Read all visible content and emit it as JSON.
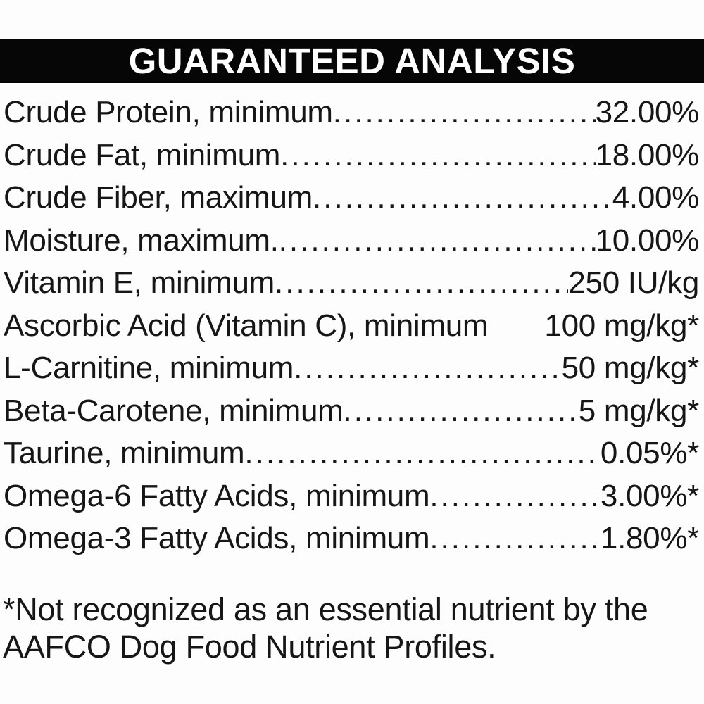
{
  "header": {
    "title": "GUARANTEED ANALYSIS"
  },
  "table": {
    "rows": [
      {
        "label": "Crude Protein, minimum",
        "value": "32.00%",
        "dots": true
      },
      {
        "label": "Crude Fat, minimum",
        "value": "18.00%",
        "dots": true
      },
      {
        "label": "Crude Fiber, maximum",
        "value": "4.00%",
        "dots": true
      },
      {
        "label": "Moisture, maximum.",
        "value": "10.00%",
        "dots": true
      },
      {
        "label": "Vitamin E, minimum",
        "value": "250 IU/kg",
        "dots": true
      },
      {
        "label": "Ascorbic Acid (Vitamin C), minimum",
        "value": "100 mg/kg*",
        "dots": false
      },
      {
        "label": "L-Carnitine, minimum",
        "value": "50 mg/kg*",
        "dots": true
      },
      {
        "label": "Beta-Carotene, minimum",
        "value": "5 mg/kg*",
        "dots": true
      },
      {
        "label": "Taurine, minimum",
        "value": "0.05%*",
        "dots": true
      },
      {
        "label": "Omega-6 Fatty Acids, minimum",
        "value": "3.00%*",
        "dots": true
      },
      {
        "label": "Omega-3 Fatty Acids, minimum",
        "value": "1.80%*",
        "dots": true
      }
    ]
  },
  "footnote": {
    "lines": [
      "*Not recognized as an essential nutrient by the",
      "AAFCO Dog Food Nutrient Profiles."
    ]
  },
  "colors": {
    "header_bg": "#060606",
    "header_text": "#ffffff",
    "body_text": "#161616",
    "background": "#fdfdfd"
  }
}
